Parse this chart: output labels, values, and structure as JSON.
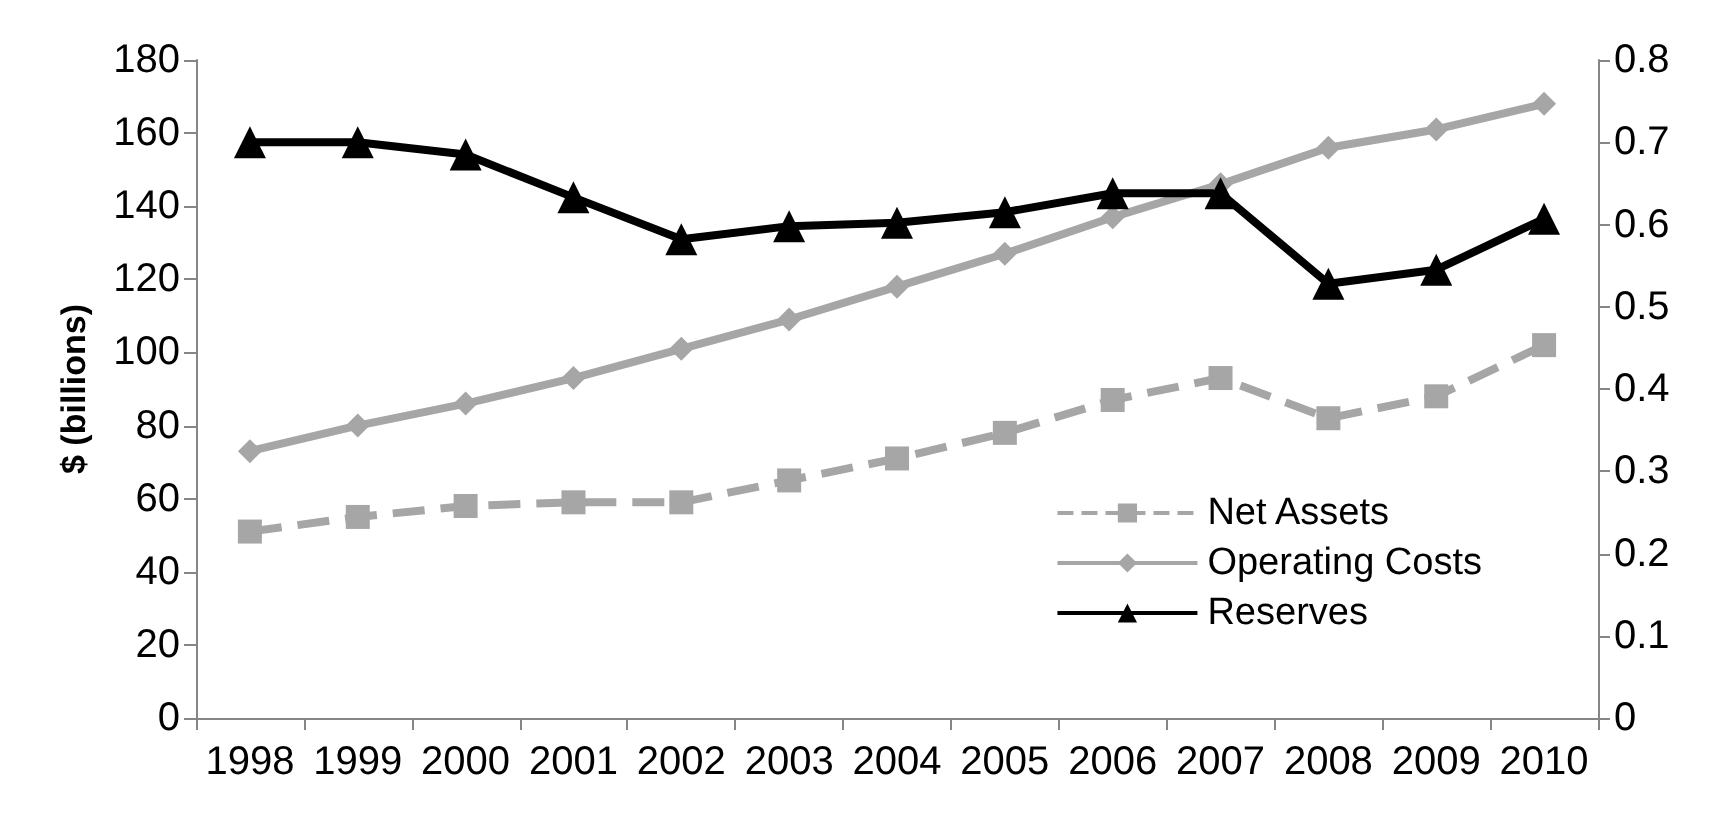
{
  "chart_data": {
    "type": "line",
    "ylabel": "$ (billions)",
    "categories": [
      "1998",
      "1999",
      "2000",
      "2001",
      "2002",
      "2003",
      "2004",
      "2005",
      "2006",
      "2007",
      "2008",
      "2009",
      "2010"
    ],
    "series": [
      {
        "name": "Net Assets",
        "color": "#a6a6a6",
        "marker": "square",
        "line_style": "dashed",
        "values": [
          51,
          55,
          58,
          59,
          59,
          65,
          71,
          78,
          87,
          93,
          82,
          88,
          102
        ]
      },
      {
        "name": "Operating Costs",
        "color": "#a6a6a6",
        "marker": "diamond",
        "line_style": "solid",
        "values": [
          73,
          80,
          86,
          93,
          101,
          109,
          118,
          127,
          137,
          146,
          156,
          161,
          168
        ]
      },
      {
        "name": "Reserves",
        "color": "#000000",
        "marker": "triangle",
        "line_style": "solid",
        "axis": "y2",
        "values": [
          0.7,
          0.7,
          0.685,
          0.633,
          0.582,
          0.598,
          0.602,
          0.615,
          0.638,
          0.638,
          0.528,
          0.545,
          0.607
        ]
      }
    ],
    "ylim": [
      0,
      180
    ],
    "yticks": [
      0,
      20,
      40,
      60,
      80,
      100,
      120,
      140,
      160,
      180
    ],
    "y2lim": [
      0,
      0.8
    ],
    "y2ticks": [
      0,
      0.1,
      0.2,
      0.3,
      0.4,
      0.5,
      0.6,
      0.7,
      0.8
    ],
    "grid": false,
    "legend": "bottom right"
  }
}
